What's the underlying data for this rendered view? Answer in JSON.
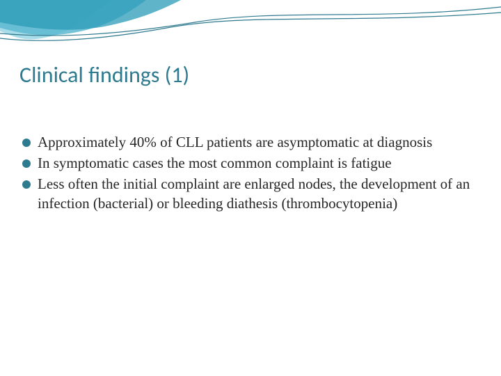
{
  "colors": {
    "title": "#2e7a8f",
    "body_text": "#262626",
    "bullet": "#2e7a8f",
    "wave_light": "#a8dce8",
    "wave_mid": "#5db8d0",
    "wave_dark": "#2b9bb8",
    "wave_line": "#2e7a8f",
    "background": "#ffffff"
  },
  "typography": {
    "title_fontsize": 32,
    "body_fontsize": 21,
    "body_lineheight": 28,
    "title_font": "Calibri, 'Segoe UI', sans-serif",
    "body_font": "Georgia, 'Times New Roman', serif"
  },
  "title": "Clinical findings (1)",
  "bullets": [
    "Approximately 40% of CLL patients are asymptomatic at diagnosis",
    "In symptomatic cases the most common complaint is fatigue",
    "Less often the initial complaint are enlarged nodes, the development of an infection (bacterial) or bleeding diathesis (thrombocytopenia)"
  ]
}
